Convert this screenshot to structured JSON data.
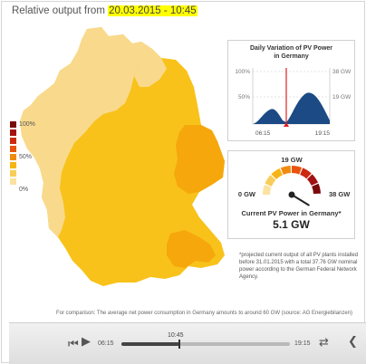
{
  "header": {
    "prefix": "Relative output from ",
    "datetime": "20.03.2015 - 10:45"
  },
  "legend": {
    "labels": [
      "100%",
      "50%",
      "0%"
    ],
    "colors": [
      "#7a0a0a",
      "#a31212",
      "#cc2a10",
      "#e8540e",
      "#f28a10",
      "#f7b416",
      "#f8cd5a",
      "#fbe2a0"
    ]
  },
  "map_colors": {
    "light": "#f9d98c",
    "mid": "#f8c21a",
    "dark": "#f5a70c"
  },
  "daily_chart": {
    "title_line1": "Daily Variation of PV Power",
    "title_line2": "in Germany",
    "y_left_top": "100%",
    "y_left_mid": "50%",
    "y_right_top": "38 GW",
    "y_right_mid": "19 GW",
    "x_start": "06:15",
    "x_end": "19:15",
    "fill_color": "#1b4a85",
    "marker_color": "#e02020"
  },
  "gauge": {
    "max_top": "19 GW",
    "min": "0 GW",
    "max": "38 GW",
    "label": "Current PV Power in Germany*",
    "value": "5.1 GW",
    "current_gw": 5.1,
    "range_gw": 38
  },
  "footnote": "*projected current output of all PV plants installed before 31.01.2015 with a total 37.76 GW nominal power according to the German Federal Network Agency.",
  "comparison": "For comparison: The average net power consumption in Germany amounts to around 60 GW (source: AG Energiebilanzen)",
  "player": {
    "time_start": "06:15",
    "time_current": "10:45",
    "time_end": "19:15",
    "progress": 0.346,
    "prev_glyph": "⏮",
    "play_glyph": "▶",
    "repeat_glyph": "⇄",
    "arrow_glyph": "❮"
  }
}
